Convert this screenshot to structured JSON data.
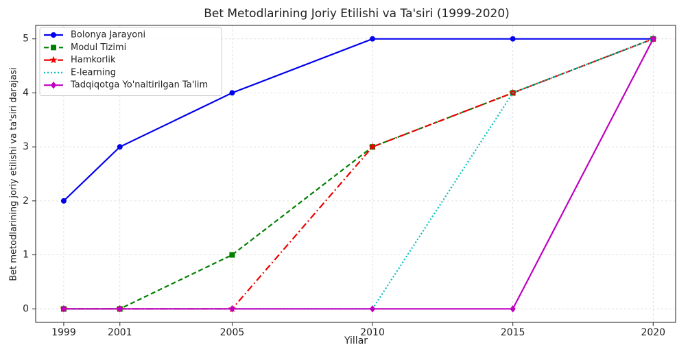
{
  "chart_data": {
    "type": "line",
    "title": "Bet Metodlarining Joriy Etilishi va Ta'siri (1999-2020)",
    "x_label": "Yillar",
    "y_label": "Bet metodlarining joriy etilishi va ta'siri darajasi",
    "x": [
      1999,
      2001,
      2005,
      2010,
      2015,
      2020
    ],
    "xlim": [
      1998,
      2020.8
    ],
    "xticks": [
      1999,
      2001,
      2005,
      2010,
      2015,
      2020
    ],
    "ylim": [
      -0.25,
      5.25
    ],
    "yticks": [
      0,
      1,
      2,
      3,
      4,
      5
    ],
    "grid": true,
    "legend": "upper left",
    "series": [
      {
        "name": "Bolonya Jarayoni",
        "color": "#0000ee",
        "dash": "solid",
        "marker": "circle",
        "values": [
          2,
          3,
          4,
          5,
          5,
          5
        ]
      },
      {
        "name": "Modul Tizimi",
        "color": "#008000",
        "dash": "dashed",
        "marker": "square",
        "values": [
          0,
          0,
          1,
          3,
          4,
          5
        ]
      },
      {
        "name": "Hamkorlik",
        "color": "#ee0000",
        "dash": "dashdot",
        "marker": "star",
        "values": [
          0,
          0,
          0,
          3,
          4,
          5
        ]
      },
      {
        "name": "E-learning",
        "color": "#00bfbf",
        "dash": "dotted",
        "marker": "none",
        "values": [
          0,
          0,
          0,
          0,
          4,
          5
        ]
      },
      {
        "name": "Tadqiqotga Yo'naltirilgan Ta'lim",
        "color": "#bf00bf",
        "dash": "solid",
        "marker": "diamond",
        "values": [
          0,
          0,
          0,
          0,
          0,
          5
        ]
      }
    ]
  }
}
